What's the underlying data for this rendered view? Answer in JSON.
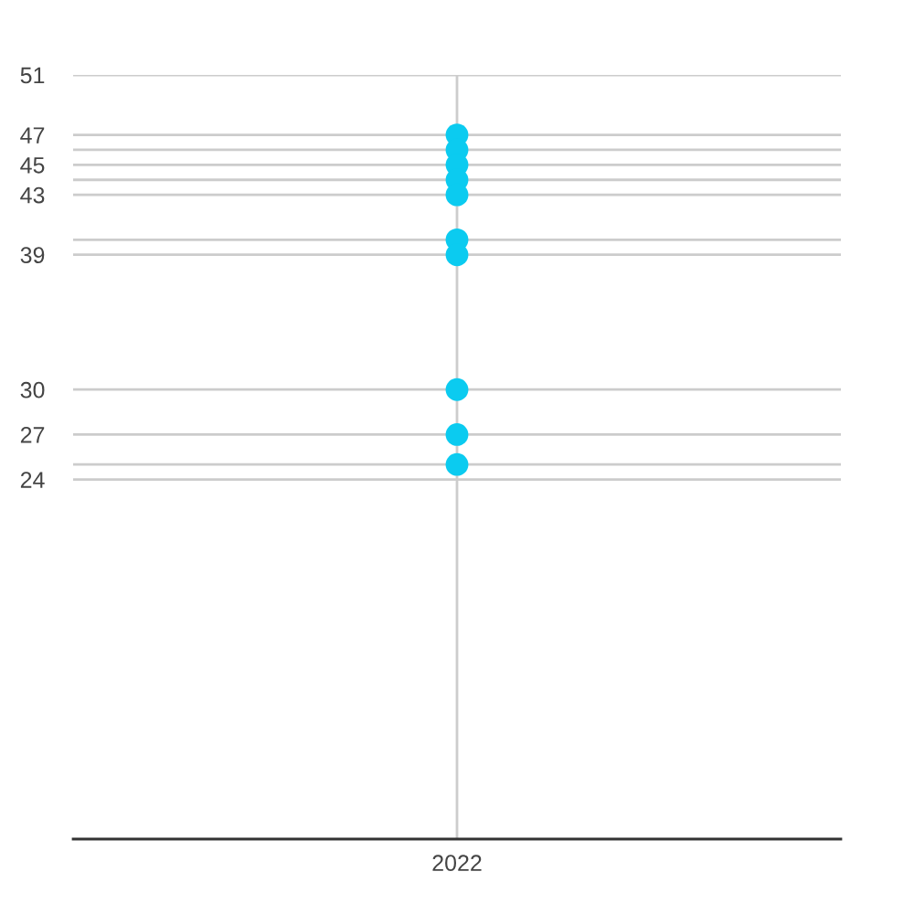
{
  "chart_data": {
    "type": "scatter",
    "categories": [
      "2022"
    ],
    "series": [
      {
        "color": "#0bcbf0",
        "values": [
          47
        ]
      },
      {
        "color": "#0bcbf0",
        "values": [
          46
        ]
      },
      {
        "color": "#0bcbf0",
        "values": [
          45
        ]
      },
      {
        "color": "#0bcbf0",
        "values": [
          44
        ]
      },
      {
        "color": "#0bcbf0",
        "values": [
          43
        ]
      },
      {
        "color": "#0bcbf0",
        "values": [
          40
        ]
      },
      {
        "color": "#0bcbf0",
        "values": [
          39
        ]
      },
      {
        "color": "#0bcbf0",
        "values": [
          30
        ]
      },
      {
        "color": "#0bcbf0",
        "values": [
          27
        ]
      },
      {
        "color": "#0bcbf0",
        "values": [
          25
        ]
      }
    ],
    "marker": "circle",
    "ylim": [
      0,
      51
    ],
    "yticks": [
      24,
      {
        "value": 25,
        "label": null
      },
      27,
      30,
      39,
      {
        "value": 40,
        "label": null
      },
      43,
      {
        "value": 44,
        "label": null
      },
      45,
      {
        "value": 46,
        "label": null
      },
      47,
      51
    ],
    "grid": true
  }
}
